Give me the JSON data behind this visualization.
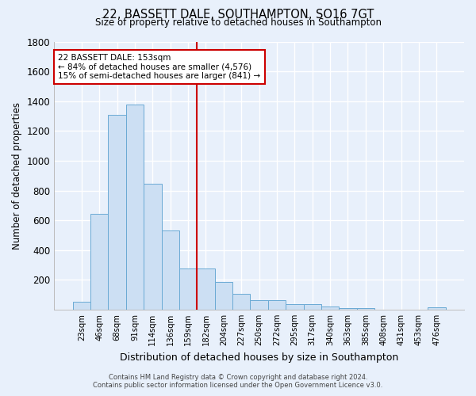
{
  "title": "22, BASSETT DALE, SOUTHAMPTON, SO16 7GT",
  "subtitle": "Size of property relative to detached houses in Southampton",
  "xlabel": "Distribution of detached houses by size in Southampton",
  "ylabel": "Number of detached properties",
  "footer_line1": "Contains HM Land Registry data © Crown copyright and database right 2024.",
  "footer_line2": "Contains public sector information licensed under the Open Government Licence v3.0.",
  "bar_labels": [
    "23sqm",
    "46sqm",
    "68sqm",
    "91sqm",
    "114sqm",
    "136sqm",
    "159sqm",
    "182sqm",
    "204sqm",
    "227sqm",
    "250sqm",
    "272sqm",
    "295sqm",
    "317sqm",
    "340sqm",
    "363sqm",
    "385sqm",
    "408sqm",
    "431sqm",
    "453sqm",
    "476sqm"
  ],
  "bar_values": [
    55,
    645,
    1310,
    1375,
    845,
    530,
    275,
    275,
    185,
    105,
    65,
    65,
    35,
    35,
    20,
    10,
    10,
    0,
    0,
    0,
    15
  ],
  "bar_color": "#ccdff3",
  "bar_edge_color": "#6aaad4",
  "ylim": [
    0,
    1800
  ],
  "yticks": [
    0,
    200,
    400,
    600,
    800,
    1000,
    1200,
    1400,
    1600,
    1800
  ],
  "vline_x": 6.5,
  "vline_color": "#cc0000",
  "annotation_text": "22 BASSETT DALE: 153sqm\n← 84% of detached houses are smaller (4,576)\n15% of semi-detached houses are larger (841) →",
  "annotation_box_color": "#ffffff",
  "annotation_border_color": "#cc0000",
  "bg_color": "#e8f0fb",
  "plot_bg_color": "#e8f0fb",
  "grid_color": "#ffffff"
}
